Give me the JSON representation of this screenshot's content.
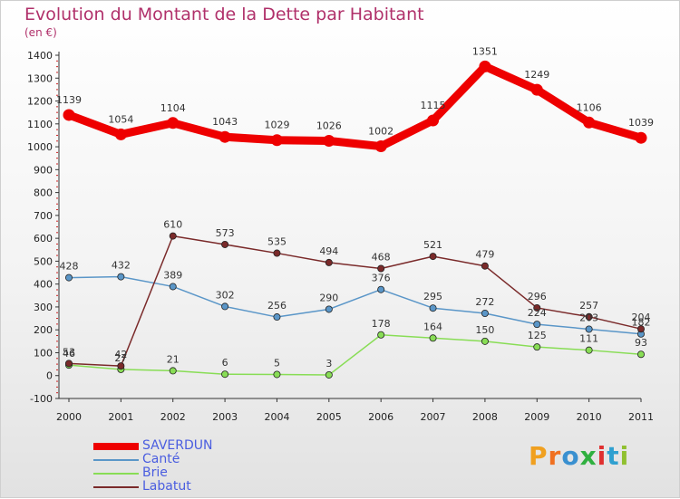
{
  "title": "Evolution du Montant de la Dette par Habitant",
  "unit_label": "(en €)",
  "logo": {
    "text": "Proxiti",
    "letter_colors": [
      "#f0a020",
      "#f07020",
      "#3a90d0",
      "#30b040",
      "#e03030",
      "#30a0d0",
      "#90c030"
    ]
  },
  "chart_data": {
    "type": "line",
    "title": "Evolution du Montant de la Dette par Habitant",
    "ylabel": "(en €)",
    "xlabel": "",
    "x": [
      "2000",
      "2001",
      "2002",
      "2003",
      "2004",
      "2005",
      "2006",
      "2007",
      "2008",
      "2009",
      "2010",
      "2011"
    ],
    "ylim": [
      -100,
      1400
    ],
    "yticks": [
      -100,
      0,
      100,
      200,
      300,
      400,
      500,
      600,
      700,
      800,
      900,
      1000,
      1100,
      1200,
      1300,
      1400
    ],
    "grid": false,
    "legend_position": "bottom-left",
    "series": [
      {
        "name": "SAVERDUN",
        "color": "#ee0000",
        "emphasis": true,
        "values": [
          1139,
          1054,
          1104,
          1043,
          1029,
          1026,
          1002,
          1115,
          1351,
          1249,
          1106,
          1039
        ]
      },
      {
        "name": "Canté",
        "color": "#5a96c8",
        "emphasis": false,
        "values": [
          428,
          432,
          389,
          302,
          256,
          290,
          376,
          295,
          272,
          224,
          203,
          182
        ]
      },
      {
        "name": "Brie",
        "color": "#88dd55",
        "emphasis": false,
        "values": [
          46,
          27,
          21,
          6,
          5,
          3,
          178,
          164,
          150,
          125,
          111,
          93
        ]
      },
      {
        "name": "Labatut",
        "color": "#7a2a2a",
        "emphasis": false,
        "values": [
          53,
          42,
          610,
          573,
          535,
          494,
          468,
          521,
          479,
          296,
          257,
          204
        ]
      }
    ]
  }
}
